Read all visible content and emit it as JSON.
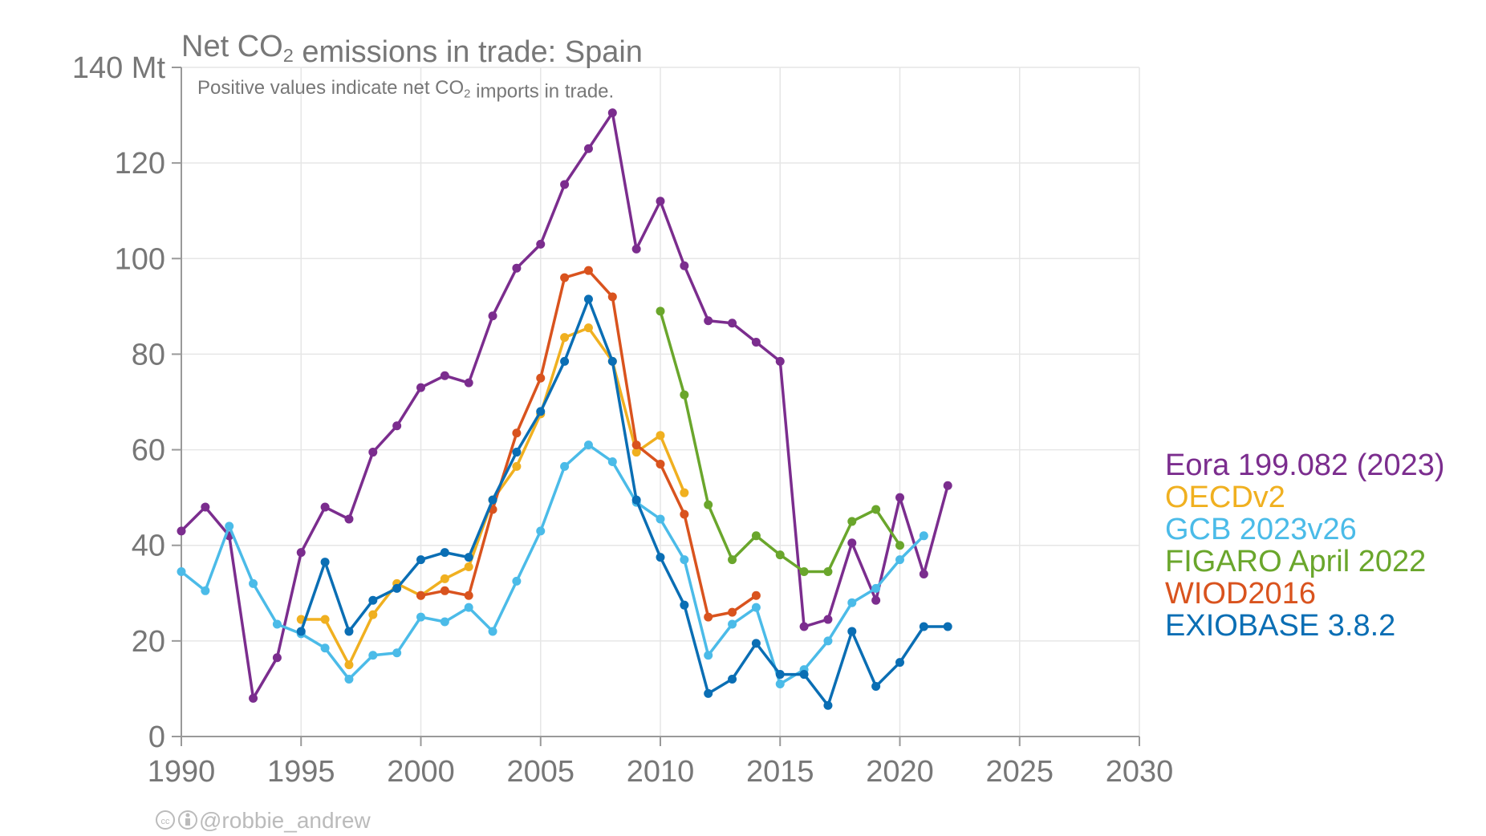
{
  "chart_data": {
    "type": "line",
    "title": "Net CO₂ emissions in trade: Spain",
    "subtitle": "Positive values indicate net CO₂ imports in trade.",
    "xlabel": "",
    "ylabel": "",
    "y_unit": "Mt",
    "xlim": [
      1990,
      2030
    ],
    "ylim": [
      0,
      140
    ],
    "x_ticks": [
      1990,
      1995,
      2000,
      2005,
      2010,
      2015,
      2020,
      2025,
      2030
    ],
    "y_ticks": [
      0,
      20,
      40,
      60,
      80,
      100,
      120,
      140
    ],
    "y_tick_labels": [
      "0",
      "20",
      "40",
      "60",
      "80",
      "100",
      "120",
      "140 Mt"
    ],
    "grid": true,
    "legend_position": "right",
    "series": [
      {
        "name": "Eora 199.082 (2023)",
        "color": "#7b2d8e",
        "x": [
          1990,
          1991,
          1992,
          1993,
          1994,
          1995,
          1996,
          1997,
          1998,
          1999,
          2000,
          2001,
          2002,
          2003,
          2004,
          2005,
          2006,
          2007,
          2008,
          2009,
          2010,
          2011,
          2012,
          2013,
          2014,
          2015,
          2016,
          2017,
          2018,
          2019,
          2020,
          2021,
          2022
        ],
        "y": [
          43,
          48,
          42,
          8,
          16.5,
          38.5,
          48,
          45.5,
          59.5,
          65,
          73,
          75.5,
          74,
          88,
          98,
          103,
          115.5,
          123,
          130.5,
          102,
          112,
          98.5,
          87,
          86.5,
          82.5,
          78.5,
          23,
          24.5,
          40.5,
          28.5,
          50,
          34,
          52.5
        ]
      },
      {
        "name": "OECDv2",
        "color": "#f0b020",
        "x": [
          1995,
          1996,
          1997,
          1998,
          1999,
          2000,
          2001,
          2002,
          2003,
          2004,
          2005,
          2006,
          2007,
          2008,
          2009,
          2010,
          2011
        ],
        "y": [
          24.5,
          24.5,
          15,
          25.5,
          32,
          29.5,
          33,
          35.5,
          49.5,
          56.5,
          67.5,
          83.5,
          85.5,
          78.5,
          59.5,
          63,
          51
        ]
      },
      {
        "name": "GCB 2023v26",
        "color": "#4bbbe8",
        "x": [
          1990,
          1991,
          1992,
          1993,
          1994,
          1995,
          1996,
          1997,
          1998,
          1999,
          2000,
          2001,
          2002,
          2003,
          2004,
          2005,
          2006,
          2007,
          2008,
          2009,
          2010,
          2011,
          2012,
          2013,
          2014,
          2015,
          2016,
          2017,
          2018,
          2019,
          2020,
          2021
        ],
        "y": [
          34.5,
          30.5,
          44,
          32,
          23.5,
          21.5,
          18.5,
          12,
          17,
          17.5,
          25,
          24,
          27,
          22,
          32.5,
          43,
          56.5,
          61,
          57.5,
          49,
          45.5,
          37,
          17,
          23.5,
          27,
          11,
          14,
          20,
          28,
          31,
          37,
          42
        ]
      },
      {
        "name": "FIGARO April 2022",
        "color": "#6aa62c",
        "x": [
          2010,
          2011,
          2012,
          2013,
          2014,
          2015,
          2016,
          2017,
          2018,
          2019,
          2020
        ],
        "y": [
          89,
          71.5,
          48.5,
          37,
          42,
          38,
          34.5,
          34.5,
          45,
          47.5,
          40
        ]
      },
      {
        "name": "WIOD2016",
        "color": "#d9531e",
        "x": [
          2000,
          2001,
          2002,
          2003,
          2004,
          2005,
          2006,
          2007,
          2008,
          2009,
          2010,
          2011,
          2012,
          2013,
          2014
        ],
        "y": [
          29.5,
          30.5,
          29.5,
          47.5,
          63.5,
          75,
          96,
          97.5,
          92,
          61,
          57,
          46.5,
          25,
          26,
          29.5
        ]
      },
      {
        "name": "EXIOBASE 3.8.2",
        "color": "#0a6eb4",
        "x": [
          1995,
          1996,
          1997,
          1998,
          1999,
          2000,
          2001,
          2002,
          2003,
          2004,
          2005,
          2006,
          2007,
          2008,
          2009,
          2010,
          2011,
          2012,
          2013,
          2014,
          2015,
          2016,
          2017,
          2018,
          2019,
          2020,
          2021,
          2022
        ],
        "y": [
          22,
          36.5,
          22,
          28.5,
          31,
          37,
          38.5,
          37.5,
          49.5,
          59.5,
          68,
          78.5,
          91.5,
          78.5,
          49.5,
          37.5,
          27.5,
          9,
          12,
          19.5,
          13,
          13,
          6.5,
          22,
          10.5,
          15.5,
          23,
          23
        ]
      }
    ]
  },
  "credit": {
    "cc_icon": "creative-commons-icon",
    "by_icon": "attribution-icon",
    "text": "@robbie_andrew"
  }
}
